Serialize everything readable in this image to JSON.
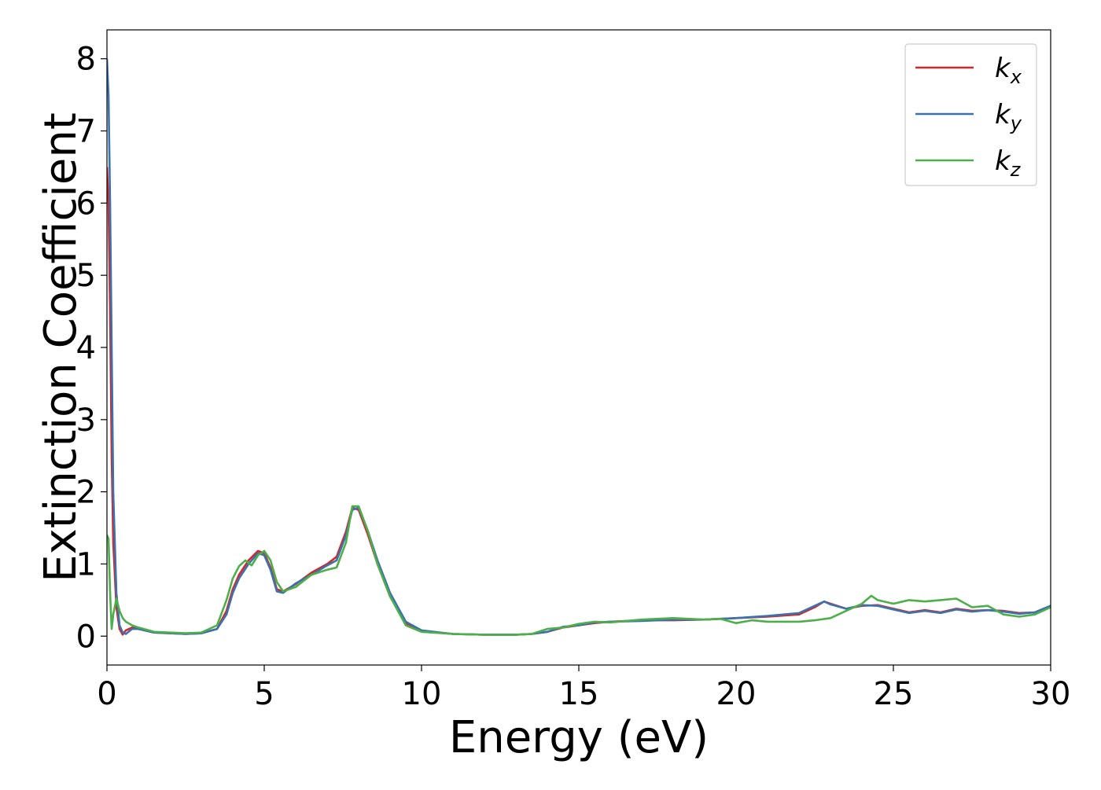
{
  "chart_data": {
    "type": "line",
    "title": "",
    "xlabel": "Energy (eV)",
    "ylabel": "Extinction Coefficient",
    "xlim": [
      0,
      30
    ],
    "ylim": [
      -0.4,
      8.4
    ],
    "xticks": [
      0,
      5,
      10,
      15,
      20,
      25,
      30
    ],
    "yticks": [
      0,
      1,
      2,
      3,
      4,
      5,
      6,
      7,
      8
    ],
    "grid": false,
    "legend_position": "top-right",
    "series": [
      {
        "name": "k",
        "subscript": "x",
        "color": "#d62728",
        "x": [
          0.0,
          0.05,
          0.1,
          0.15,
          0.2,
          0.3,
          0.4,
          0.5,
          0.6,
          0.8,
          1.0,
          1.5,
          2.0,
          2.5,
          3.0,
          3.5,
          3.8,
          4.0,
          4.2,
          4.5,
          4.8,
          5.0,
          5.2,
          5.4,
          5.6,
          6.0,
          6.5,
          7.0,
          7.3,
          7.6,
          7.8,
          8.0,
          8.3,
          8.6,
          9.0,
          9.5,
          10.0,
          11.0,
          12.0,
          13.0,
          13.5,
          14.0,
          14.5,
          15.0,
          15.5,
          16.0,
          17.0,
          18.0,
          19.0,
          20.0,
          21.0,
          22.0,
          22.5,
          22.8,
          23.0,
          23.5,
          24.0,
          24.5,
          25.0,
          25.5,
          26.0,
          26.5,
          27.0,
          27.5,
          28.0,
          28.5,
          29.0,
          29.5,
          30.0
        ],
        "y": [
          6.5,
          6.0,
          4.5,
          2.5,
          1.3,
          0.4,
          0.1,
          0.02,
          0.08,
          0.12,
          0.1,
          0.05,
          0.04,
          0.03,
          0.04,
          0.1,
          0.35,
          0.65,
          0.85,
          1.05,
          1.18,
          1.15,
          0.95,
          0.65,
          0.62,
          0.72,
          0.88,
          1.0,
          1.1,
          1.45,
          1.78,
          1.75,
          1.4,
          1.0,
          0.55,
          0.18,
          0.07,
          0.03,
          0.02,
          0.02,
          0.03,
          0.06,
          0.12,
          0.15,
          0.18,
          0.2,
          0.22,
          0.22,
          0.23,
          0.25,
          0.27,
          0.3,
          0.4,
          0.48,
          0.45,
          0.38,
          0.42,
          0.43,
          0.38,
          0.33,
          0.36,
          0.33,
          0.38,
          0.35,
          0.36,
          0.35,
          0.32,
          0.33,
          0.42
        ]
      },
      {
        "name": "k",
        "subscript": "y",
        "color": "#3a72b0",
        "x": [
          0.0,
          0.05,
          0.1,
          0.15,
          0.2,
          0.3,
          0.4,
          0.5,
          0.6,
          0.8,
          1.0,
          1.5,
          2.0,
          2.5,
          3.0,
          3.5,
          3.8,
          4.0,
          4.2,
          4.5,
          4.8,
          5.0,
          5.2,
          5.4,
          5.6,
          6.0,
          6.5,
          7.0,
          7.3,
          7.6,
          7.8,
          8.0,
          8.3,
          8.6,
          9.0,
          9.5,
          10.0,
          11.0,
          12.0,
          13.0,
          13.5,
          14.0,
          14.5,
          15.0,
          15.5,
          16.0,
          17.0,
          18.0,
          19.0,
          20.0,
          21.0,
          22.0,
          22.5,
          22.8,
          23.0,
          23.5,
          24.0,
          24.5,
          25.0,
          25.5,
          26.0,
          26.5,
          27.0,
          27.5,
          28.0,
          28.5,
          29.0,
          29.5,
          30.0
        ],
        "y": [
          8.0,
          7.5,
          6.0,
          4.0,
          2.0,
          0.6,
          0.15,
          0.05,
          0.03,
          0.1,
          0.1,
          0.05,
          0.04,
          0.03,
          0.04,
          0.1,
          0.3,
          0.6,
          0.8,
          1.0,
          1.15,
          1.12,
          0.92,
          0.62,
          0.6,
          0.73,
          0.85,
          0.98,
          1.05,
          1.4,
          1.75,
          1.78,
          1.45,
          1.05,
          0.6,
          0.2,
          0.08,
          0.03,
          0.02,
          0.02,
          0.03,
          0.06,
          0.13,
          0.15,
          0.19,
          0.2,
          0.21,
          0.23,
          0.23,
          0.25,
          0.28,
          0.32,
          0.42,
          0.48,
          0.44,
          0.38,
          0.43,
          0.42,
          0.37,
          0.32,
          0.35,
          0.32,
          0.37,
          0.34,
          0.36,
          0.34,
          0.31,
          0.33,
          0.42
        ]
      },
      {
        "name": "k",
        "subscript": "z",
        "color": "#4daf4a",
        "x": [
          0.0,
          0.05,
          0.1,
          0.15,
          0.2,
          0.3,
          0.4,
          0.5,
          0.6,
          0.8,
          1.0,
          1.5,
          2.0,
          2.5,
          3.0,
          3.5,
          3.8,
          4.0,
          4.2,
          4.4,
          4.6,
          4.8,
          5.0,
          5.2,
          5.4,
          5.6,
          6.0,
          6.5,
          7.0,
          7.3,
          7.6,
          7.8,
          8.0,
          8.3,
          8.6,
          9.0,
          9.5,
          10.0,
          11.0,
          12.0,
          13.0,
          13.5,
          14.0,
          14.5,
          15.0,
          15.5,
          16.0,
          17.0,
          18.0,
          19.0,
          19.5,
          20.0,
          20.5,
          21.0,
          22.0,
          22.5,
          23.0,
          23.5,
          24.0,
          24.3,
          24.5,
          25.0,
          25.5,
          26.0,
          26.5,
          27.0,
          27.5,
          28.0,
          28.5,
          29.0,
          29.5,
          30.0
        ],
        "y": [
          1.4,
          1.35,
          0.6,
          0.1,
          0.3,
          0.52,
          0.35,
          0.25,
          0.2,
          0.15,
          0.12,
          0.06,
          0.05,
          0.04,
          0.05,
          0.15,
          0.5,
          0.8,
          0.97,
          1.05,
          0.98,
          1.12,
          1.18,
          1.05,
          0.75,
          0.62,
          0.68,
          0.85,
          0.92,
          0.95,
          1.3,
          1.8,
          1.8,
          1.45,
          1.0,
          0.55,
          0.15,
          0.06,
          0.03,
          0.02,
          0.02,
          0.03,
          0.1,
          0.12,
          0.17,
          0.2,
          0.19,
          0.23,
          0.25,
          0.23,
          0.24,
          0.18,
          0.22,
          0.2,
          0.2,
          0.22,
          0.25,
          0.35,
          0.45,
          0.56,
          0.5,
          0.45,
          0.5,
          0.48,
          0.5,
          0.52,
          0.4,
          0.42,
          0.3,
          0.27,
          0.3,
          0.4
        ]
      }
    ]
  }
}
